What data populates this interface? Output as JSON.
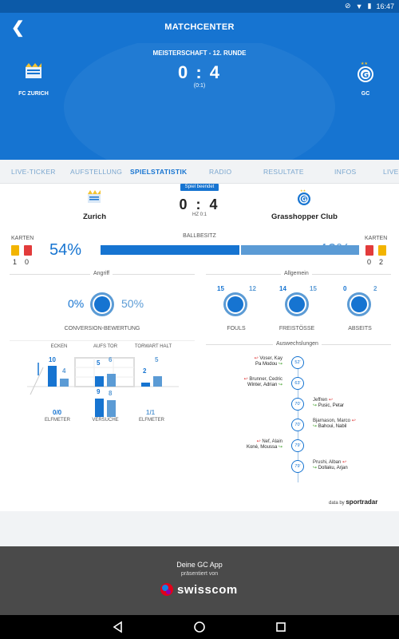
{
  "status": {
    "time": "16:47"
  },
  "toolbar": {
    "title": "MATCHCENTER"
  },
  "hero": {
    "round": "MEISTERSCHAFT - 12. RUNDE",
    "score": "0 : 4",
    "halftime": "(0:1)",
    "home_team": "FC ZURICH",
    "away_team": "GC"
  },
  "tabs": [
    "LIVE-TICKER",
    "AUFSTELLUNG",
    "SPIELSTATISTIK",
    "RADIO",
    "RESULTATE",
    "INFOS",
    "LIVE"
  ],
  "match": {
    "status_badge": "Spiel beendet",
    "score": "0 : 4",
    "halftime": "HZ 0:1",
    "home_name": "Zurich",
    "away_name": "Grasshopper Club"
  },
  "possession": {
    "label": "BALLBESITZ",
    "home_pct": "54%",
    "away_pct": "46%",
    "home_value": 54,
    "away_value": 46
  },
  "cards": {
    "label": "KARTEN",
    "home_yellow": "1",
    "home_red": "0",
    "away_red": "0",
    "away_yellow": "2",
    "yellow_color": "#f2b400",
    "red_color": "#e23b3b"
  },
  "attack": {
    "title": "Angriff",
    "conversion_home": "0%",
    "conversion_away": "50%",
    "conversion_label": "CONVERSION-BEWERTUNG",
    "corners_label": "ECKEN",
    "corners_home": "10",
    "corners_away": "4",
    "on_target_label": "AUFS TOR",
    "on_target_home": "5",
    "on_target_away": "6",
    "saves_label": "TORWART HALT",
    "saves_home": "2",
    "saves_away": "5",
    "shots_home": "9",
    "shots_away": "8",
    "shots_label": "VERSUCHE",
    "penalties_home": "0/0",
    "penalties_label_home": "ELFMETER",
    "penalties_away": "1/1",
    "penalties_label_away": "ELFMETER"
  },
  "general": {
    "title": "Allgemein",
    "fouls_home": "15",
    "fouls_away": "12",
    "fouls_label": "FOULS",
    "freekicks_home": "14",
    "freekicks_away": "15",
    "freekicks_label": "FREISTÖSSE",
    "offside_home": "0",
    "offside_away": "2",
    "offside_label": "ABSEITS"
  },
  "subs": {
    "title": "Auswechslungen",
    "items": [
      {
        "side": "home",
        "out": "Voser, Kay",
        "in": "Pa Modou",
        "minute": "52'"
      },
      {
        "side": "home",
        "out": "Brunner, Cedric",
        "in": "Winter, Adrian",
        "minute": "63'"
      },
      {
        "side": "away",
        "out": "Jeffren",
        "in": "Pusic, Petar",
        "minute": "70'"
      },
      {
        "side": "away",
        "out": "Bjarnason, Marco",
        "in": "Bahoui, Nabil",
        "minute": "70'"
      },
      {
        "side": "home",
        "out": "Nef, Alain",
        "in": "Koné, Moussa",
        "minute": "79'"
      },
      {
        "side": "away",
        "out": "Prushi, Alban",
        "in": "Dollaku, Arjan",
        "minute": "79'"
      }
    ]
  },
  "credit": {
    "prefix": "data by",
    "brand": "sportradar"
  },
  "footer": {
    "line1": "Deine GC App",
    "line2": "präsentiert von",
    "brand": "swisscom"
  },
  "colors": {
    "primary": "#1674d1",
    "secondary": "#5b9bd5"
  }
}
